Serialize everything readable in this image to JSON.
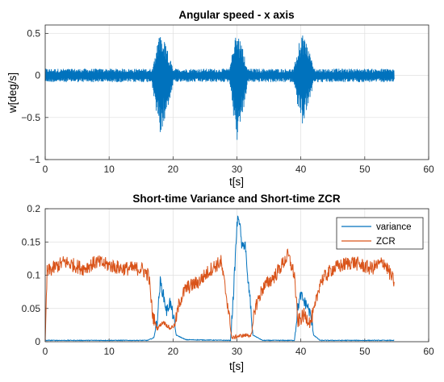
{
  "chart_data": [
    {
      "type": "line",
      "title": "Angular speed - x axis",
      "xlabel": "t[s]",
      "ylabel": "w[deg/s]",
      "xlim": [
        0,
        60
      ],
      "ylim": [
        -1,
        0.6
      ],
      "xticks": [
        0,
        10,
        20,
        30,
        40,
        50,
        60
      ],
      "xtick_labels": [
        "0",
        "10",
        "20",
        "30",
        "40",
        "50",
        "60"
      ],
      "yticks": [
        -1,
        -0.5,
        0,
        0.5
      ],
      "ytick_labels": [
        "−1",
        "−0.5",
        "0",
        "0.5"
      ],
      "grid": true,
      "legend": null,
      "series": [
        {
          "color": "#0072BD",
          "duration_s": 54.6,
          "baseline_amplitude": 0.08,
          "bursts": [
            {
              "t_start": 16.6,
              "t_end": 20.2,
              "peak_t": 18.0,
              "max": 0.53,
              "min": -0.72
            },
            {
              "t_start": 28.8,
              "t_end": 31.8,
              "peak_t": 30.0,
              "max": 0.57,
              "min": -0.8
            },
            {
              "t_start": 38.8,
              "t_end": 42.2,
              "peak_t": 40.2,
              "max": 0.57,
              "min": -0.62
            }
          ]
        }
      ]
    },
    {
      "type": "line",
      "title": "Short-time Variance and Short-time ZCR",
      "xlabel": "t[s]",
      "ylabel": "",
      "xlim": [
        0,
        60
      ],
      "ylim": [
        0,
        0.2
      ],
      "xticks": [
        0,
        10,
        20,
        30,
        40,
        50,
        60
      ],
      "xtick_labels": [
        "0",
        "10",
        "20",
        "30",
        "40",
        "50",
        "60"
      ],
      "yticks": [
        0,
        0.05,
        0.1,
        0.15,
        0.2
      ],
      "ytick_labels": [
        "0",
        "0.05",
        "0.1",
        "0.15",
        "0.2"
      ],
      "grid": true,
      "legend": "top-right",
      "series": [
        {
          "name": "variance",
          "color": "#0072BD",
          "points": [
            [
              0,
              0.002
            ],
            [
              16,
              0.002
            ],
            [
              17,
              0.006
            ],
            [
              17.5,
              0.03
            ],
            [
              18,
              0.09
            ],
            [
              18.5,
              0.07
            ],
            [
              19,
              0.045
            ],
            [
              19.5,
              0.06
            ],
            [
              20,
              0.04
            ],
            [
              20.5,
              0.01
            ],
            [
              22,
              0.003
            ],
            [
              29,
              0.002
            ],
            [
              29.5,
              0.08
            ],
            [
              30,
              0.175
            ],
            [
              30.3,
              0.19
            ],
            [
              30.8,
              0.14
            ],
            [
              31.3,
              0.15
            ],
            [
              31.6,
              0.1
            ],
            [
              32,
              0.07
            ],
            [
              32.5,
              0.01
            ],
            [
              34,
              0.002
            ],
            [
              39,
              0.002
            ],
            [
              39.5,
              0.05
            ],
            [
              40,
              0.07
            ],
            [
              40.5,
              0.06
            ],
            [
              41,
              0.055
            ],
            [
              41.5,
              0.04
            ],
            [
              42,
              0.01
            ],
            [
              43,
              0.002
            ],
            [
              54.6,
              0.002
            ]
          ]
        },
        {
          "name": "ZCR",
          "color": "#D95319",
          "points": [
            [
              0,
              0
            ],
            [
              0.3,
              0.105
            ],
            [
              3,
              0.12
            ],
            [
              6,
              0.11
            ],
            [
              8,
              0.12
            ],
            [
              12,
              0.11
            ],
            [
              15,
              0.11
            ],
            [
              16.2,
              0.1
            ],
            [
              16.8,
              0.04
            ],
            [
              17.5,
              0.02
            ],
            [
              18.5,
              0.03
            ],
            [
              19.5,
              0.02
            ],
            [
              20.3,
              0.025
            ],
            [
              21,
              0.06
            ],
            [
              22,
              0.08
            ],
            [
              24,
              0.09
            ],
            [
              26,
              0.11
            ],
            [
              27.5,
              0.12
            ],
            [
              28.5,
              0.06
            ],
            [
              29.2,
              0.005
            ],
            [
              30,
              0.008
            ],
            [
              31.5,
              0.01
            ],
            [
              32.3,
              0.01
            ],
            [
              32.8,
              0.05
            ],
            [
              34,
              0.08
            ],
            [
              36,
              0.1
            ],
            [
              38,
              0.13
            ],
            [
              39,
              0.1
            ],
            [
              39.5,
              0.03
            ],
            [
              40.5,
              0.04
            ],
            [
              41.5,
              0.03
            ],
            [
              42.2,
              0.05
            ],
            [
              43,
              0.09
            ],
            [
              45,
              0.11
            ],
            [
              48,
              0.12
            ],
            [
              51,
              0.11
            ],
            [
              53,
              0.12
            ],
            [
              54.6,
              0.09
            ]
          ]
        }
      ]
    }
  ]
}
